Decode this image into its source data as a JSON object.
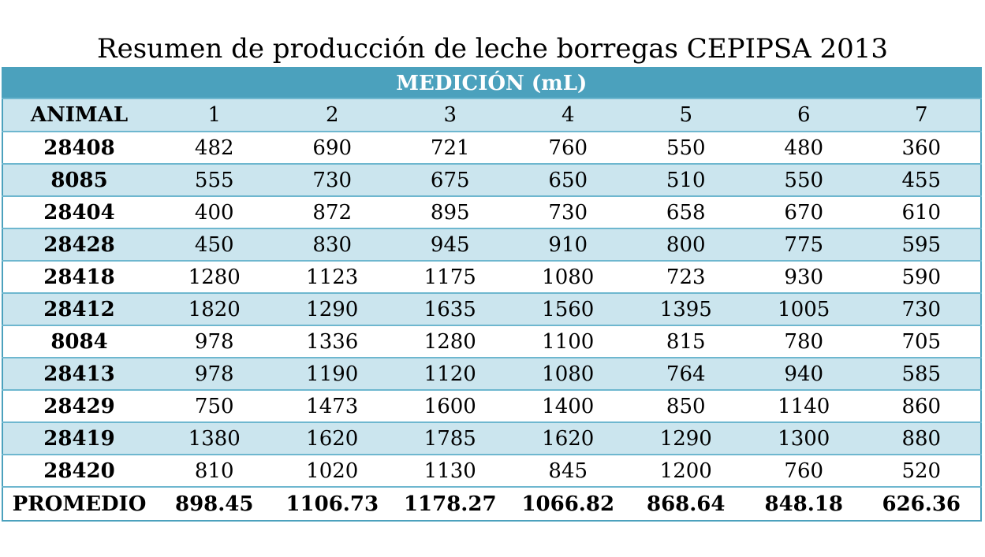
{
  "title": "Resumen de producción de leche borregas CEPIPSA 2013",
  "table": {
    "group_header": "MEDICIÓN (mL)",
    "columns": [
      "ANIMAL",
      "1",
      "2",
      "3",
      "4",
      "5",
      "6",
      "7"
    ],
    "rows": [
      {
        "animal": "28408",
        "values": [
          "482",
          "690",
          "721",
          "760",
          "550",
          "480",
          "360"
        ]
      },
      {
        "animal": "8085",
        "values": [
          "555",
          "730",
          "675",
          "650",
          "510",
          "550",
          "455"
        ]
      },
      {
        "animal": "28404",
        "values": [
          "400",
          "872",
          "895",
          "730",
          "658",
          "670",
          "610"
        ]
      },
      {
        "animal": "28428",
        "values": [
          "450",
          "830",
          "945",
          "910",
          "800",
          "775",
          "595"
        ]
      },
      {
        "animal": "28418",
        "values": [
          "1280",
          "1123",
          "1175",
          "1080",
          "723",
          "930",
          "590"
        ]
      },
      {
        "animal": "28412",
        "values": [
          "1820",
          "1290",
          "1635",
          "1560",
          "1395",
          "1005",
          "730"
        ]
      },
      {
        "animal": "8084",
        "values": [
          "978",
          "1336",
          "1280",
          "1100",
          "815",
          "780",
          "705"
        ]
      },
      {
        "animal": "28413",
        "values": [
          "978",
          "1190",
          "1120",
          "1080",
          "764",
          "940",
          "585"
        ]
      },
      {
        "animal": "28429",
        "values": [
          "750",
          "1473",
          "1600",
          "1400",
          "850",
          "1140",
          "860"
        ]
      },
      {
        "animal": "28419",
        "values": [
          "1380",
          "1620",
          "1785",
          "1620",
          "1290",
          "1300",
          "880"
        ]
      },
      {
        "animal": "28420",
        "values": [
          "810",
          "1020",
          "1130",
          "845",
          "1200",
          "760",
          "520"
        ]
      }
    ],
    "average": {
      "label": "PROMEDIO",
      "values": [
        "898.45",
        "1106.73",
        "1178.27",
        "1066.82",
        "868.64",
        "848.18",
        "626.36"
      ]
    }
  },
  "colors": {
    "header_blue": "#4ba1bd",
    "band_light_blue": "#cbe5ee",
    "border_blue": "#6eb7cf"
  }
}
